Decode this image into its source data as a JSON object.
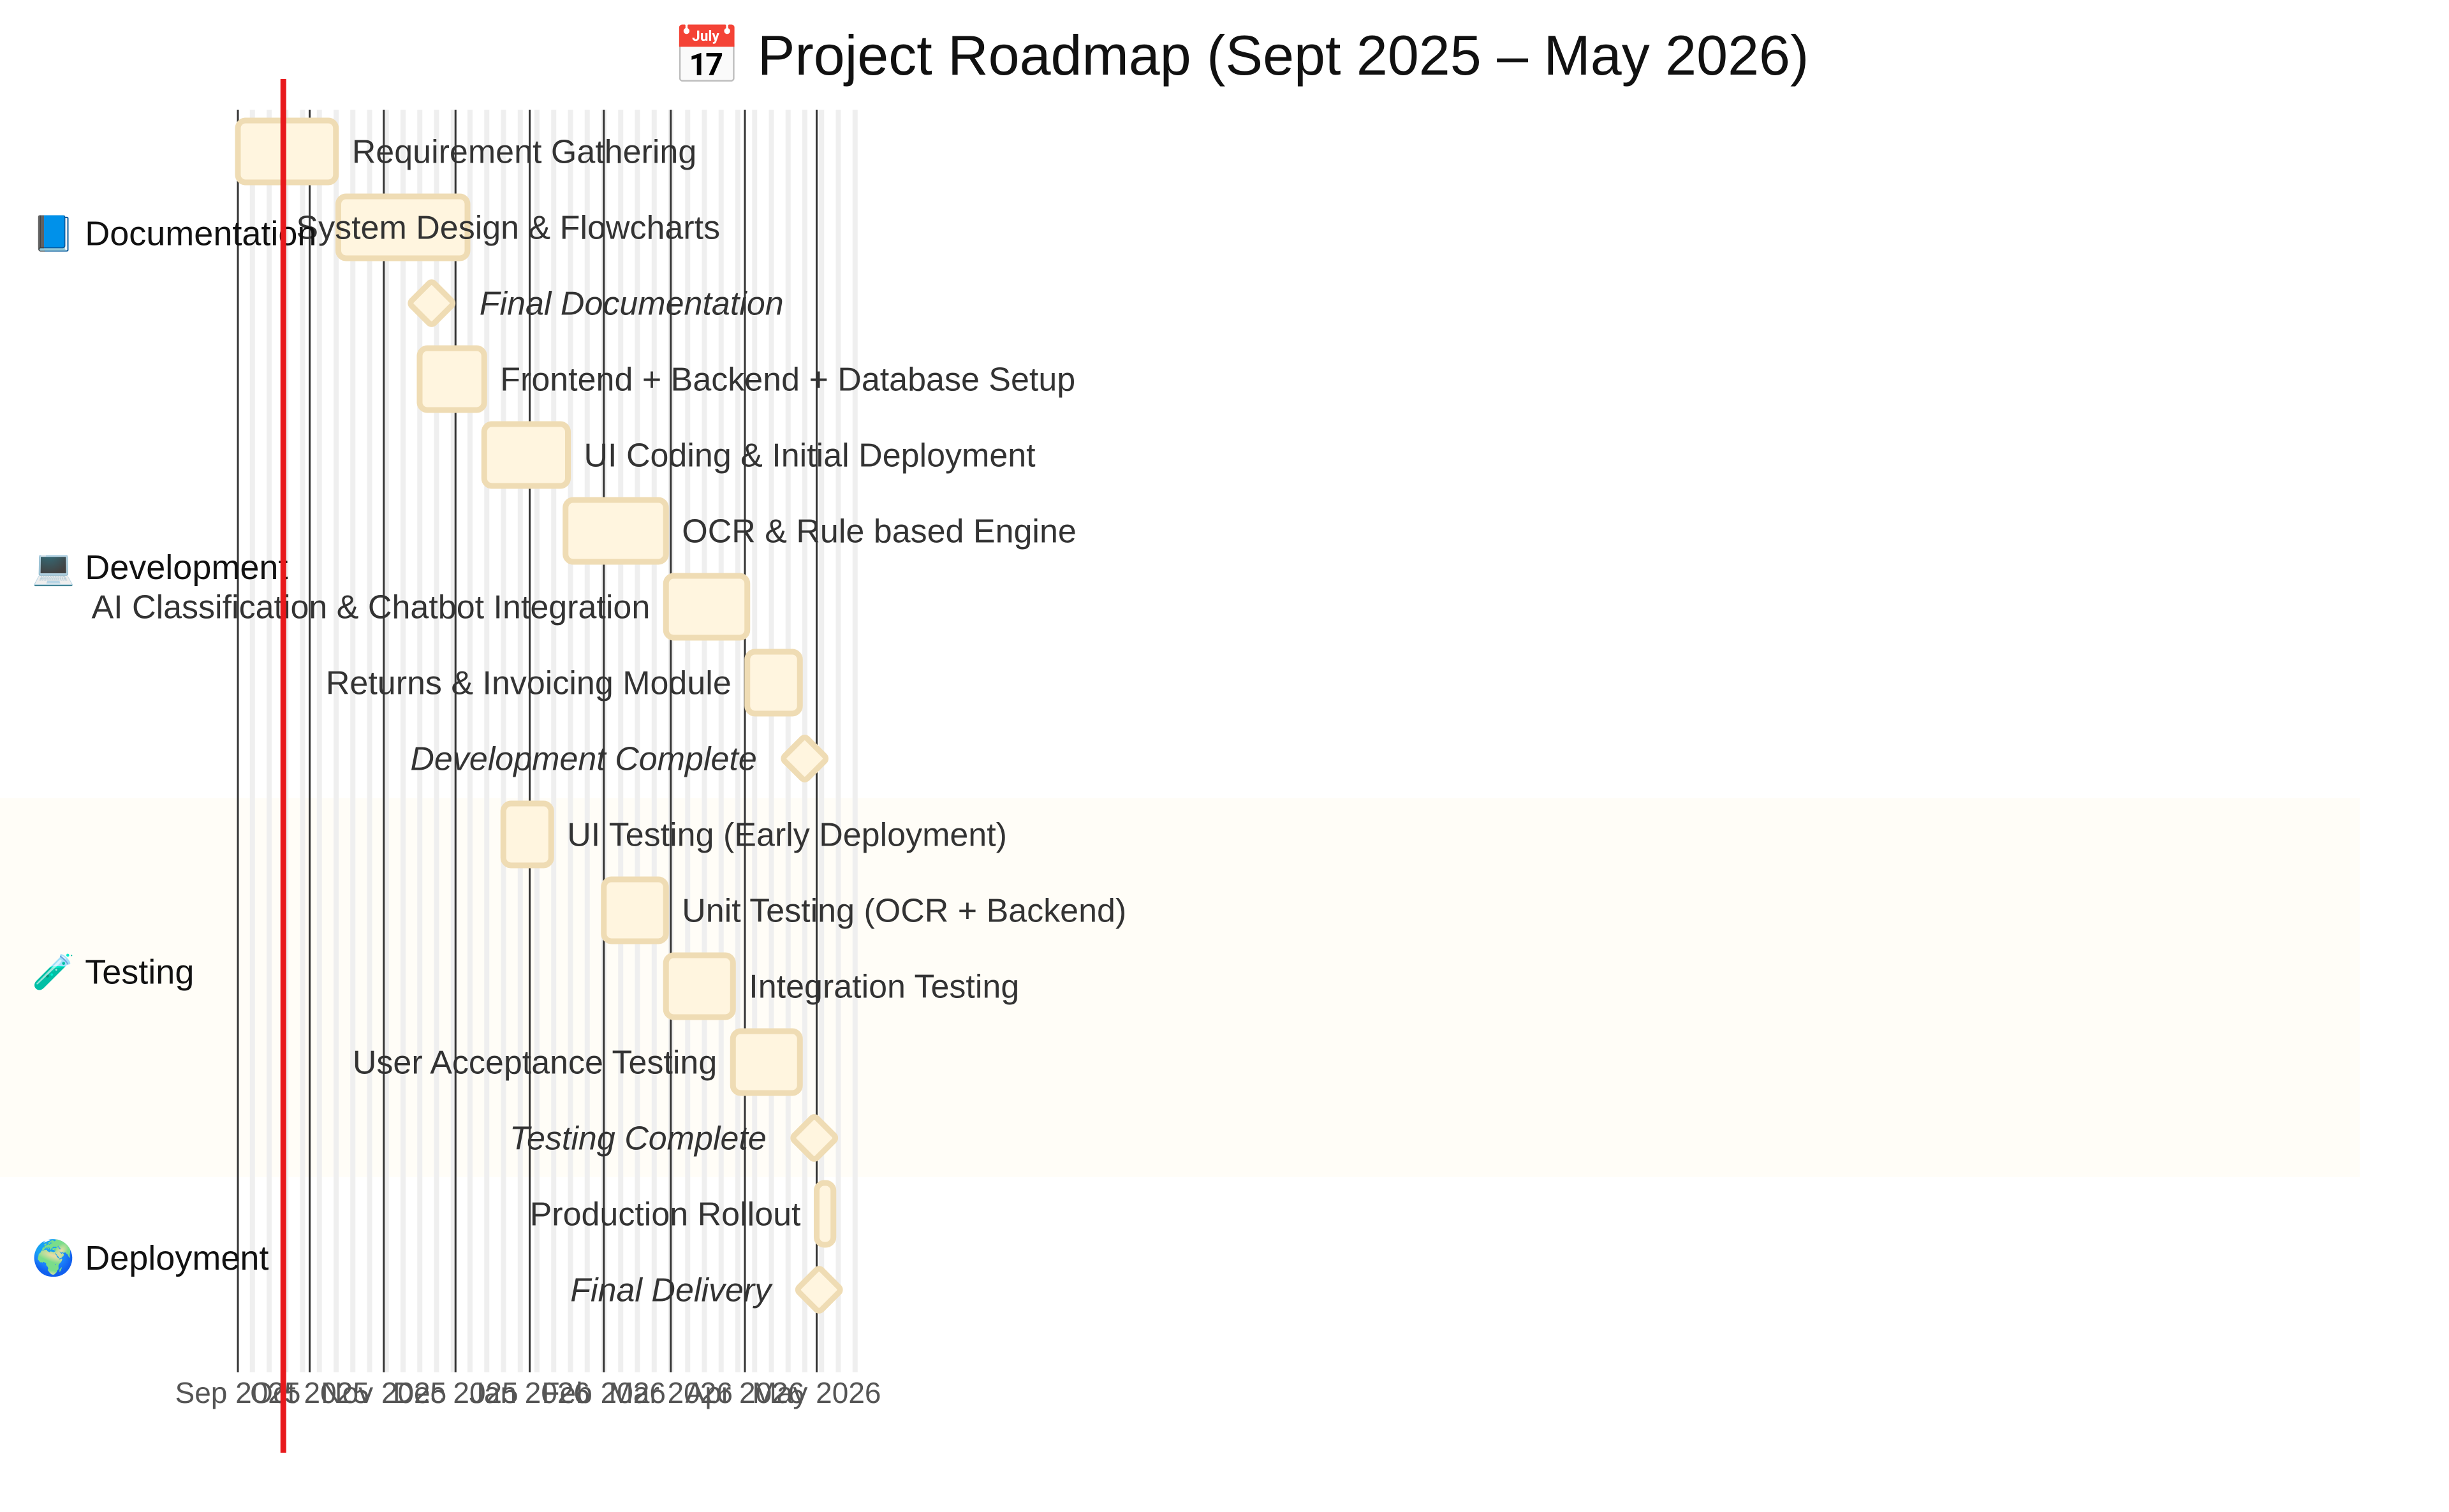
{
  "chart_data": {
    "type": "gantt",
    "title": "📅 Project Roadmap (Sept 2025 – May 2026)",
    "today_marker": "2025-09-20",
    "colors": {
      "bar_fill": "#fff5df",
      "bar_stroke": "#efdcb4",
      "today_line": "#e8191c",
      "highlight_band": "#fffdf7",
      "weekend_band": "#efefef",
      "month_line": "#333333"
    },
    "x_axis": {
      "start": "2025-09-01",
      "end": "2026-05-16",
      "ticks": [
        {
          "date": "2025-09-01",
          "label": "Sep 2025"
        },
        {
          "date": "2025-10-01",
          "label": "Oct 2025"
        },
        {
          "date": "2025-11-01",
          "label": "Nov 2025"
        },
        {
          "date": "2025-12-01",
          "label": "Dec 2025"
        },
        {
          "date": "2026-01-01",
          "label": "Jan 2026"
        },
        {
          "date": "2026-02-01",
          "label": "Feb 2026"
        },
        {
          "date": "2026-03-01",
          "label": "Mar 2026"
        },
        {
          "date": "2026-04-01",
          "label": "Apr 2026"
        },
        {
          "date": "2026-05-01",
          "label": "May 2026"
        }
      ]
    },
    "sections": [
      {
        "icon": "📘",
        "name": "Documentation",
        "tasks": [
          {
            "name": "Requirement Gathering",
            "start": "2025-09-01",
            "end": "2025-10-12",
            "milestone": false,
            "label_side": "right"
          },
          {
            "name": "System Design & Flowcharts",
            "start": "2025-10-13",
            "end": "2025-12-06",
            "milestone": false,
            "label_side": "inside"
          },
          {
            "name": "Final Documentation",
            "date": "2025-11-21",
            "milestone": true,
            "label_side": "right"
          }
        ]
      },
      {
        "icon": "💻",
        "name": "Development",
        "tasks": [
          {
            "name": "Frontend + Backend + Database Setup",
            "start": "2025-11-16",
            "end": "2025-12-13",
            "milestone": false,
            "label_side": "right"
          },
          {
            "name": "UI Coding & Initial Deployment",
            "start": "2025-12-13",
            "end": "2026-01-17",
            "milestone": false,
            "label_side": "right"
          },
          {
            "name": "OCR & Rule based Engine",
            "start": "2026-01-16",
            "end": "2026-02-27",
            "milestone": false,
            "label_side": "right"
          },
          {
            "name": "AI Classification & Chatbot Integration",
            "start": "2026-02-27",
            "end": "2026-04-02",
            "milestone": false,
            "label_side": "left"
          },
          {
            "name": "Returns & Invoicing Module",
            "start": "2026-04-02",
            "end": "2026-04-24",
            "milestone": false,
            "label_side": "left"
          },
          {
            "name": "Development Complete",
            "date": "2026-04-26",
            "milestone": true,
            "label_side": "left"
          }
        ]
      },
      {
        "icon": "🧪",
        "name": "Testing",
        "highlight": true,
        "tasks": [
          {
            "name": "UI Testing (Early Deployment)",
            "start": "2025-12-21",
            "end": "2026-01-10",
            "milestone": false,
            "label_side": "right"
          },
          {
            "name": "Unit Testing (OCR + Backend)",
            "start": "2026-02-01",
            "end": "2026-02-27",
            "milestone": false,
            "label_side": "right"
          },
          {
            "name": "Integration Testing",
            "start": "2026-02-27",
            "end": "2026-03-27",
            "milestone": false,
            "label_side": "right"
          },
          {
            "name": "User Acceptance Testing",
            "start": "2026-03-27",
            "end": "2026-04-24",
            "milestone": false,
            "label_side": "left"
          },
          {
            "name": "Testing Complete",
            "date": "2026-04-30",
            "milestone": true,
            "label_side": "left"
          }
        ]
      },
      {
        "icon": "🌍",
        "name": "Deployment",
        "tasks": [
          {
            "name": "Production Rollout",
            "start": "2026-05-01",
            "end": "2026-05-08",
            "milestone": false,
            "label_side": "left"
          },
          {
            "name": "Final Delivery",
            "date": "2026-05-02",
            "milestone": true,
            "label_side": "left"
          }
        ]
      }
    ]
  }
}
